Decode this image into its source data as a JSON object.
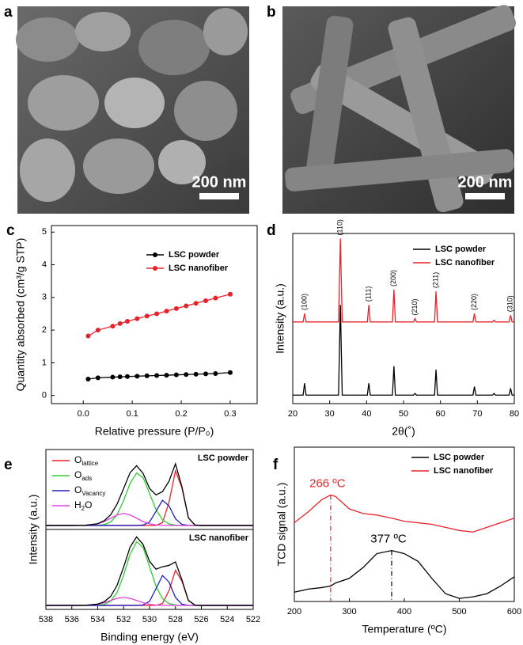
{
  "panels": [
    {
      "label": "a",
      "scale_bar": "200 nm"
    },
    {
      "label": "b",
      "scale_bar": "200 nm"
    }
  ],
  "chart_data": [
    {
      "label": "c",
      "type": "line",
      "x_label": "Relative pressure (P/P₀)",
      "y_label": "Quantity absorbed (cm³/g STP)",
      "x": [
        0.01,
        0.03,
        0.06,
        0.075,
        0.09,
        0.11,
        0.13,
        0.15,
        0.17,
        0.19,
        0.21,
        0.23,
        0.25,
        0.27,
        0.3
      ],
      "series": [
        {
          "name": "LSC powder",
          "color": "#000000",
          "values": [
            0.5,
            0.54,
            0.56,
            0.57,
            0.58,
            0.59,
            0.6,
            0.61,
            0.62,
            0.63,
            0.64,
            0.65,
            0.66,
            0.67,
            0.7
          ]
        },
        {
          "name": "LSC nanofiber",
          "color": "#e8222a",
          "values": [
            1.82,
            2.0,
            2.12,
            2.2,
            2.27,
            2.35,
            2.43,
            2.5,
            2.58,
            2.66,
            2.74,
            2.82,
            2.9,
            2.98,
            3.1
          ]
        }
      ],
      "xlim": [
        -0.065,
        0.355
      ],
      "ylim": [
        -0.25,
        5.2
      ],
      "xticks": [
        {
          "value": 0,
          "label": "0.0"
        },
        0.1,
        0.2,
        0.3
      ],
      "yticks": [
        0,
        1,
        2,
        3,
        4,
        5
      ],
      "markers": true,
      "legend": "upper right"
    },
    {
      "label": "d",
      "type": "line",
      "x_label": "2θ(˚)",
      "y_label": "Intensity (a.u.)",
      "x": [
        20,
        22.8,
        23.2,
        23.6,
        32.4,
        32.9,
        33.4,
        40.2,
        40.6,
        41.0,
        47.0,
        47.4,
        47.8,
        52.7,
        53.1,
        53.5,
        58.4,
        58.8,
        59.2,
        68.8,
        69.2,
        69.6,
        74.1,
        74.5,
        74.9,
        78.6,
        79.0,
        79.4,
        80
      ],
      "series": [
        {
          "name": "LSC powder",
          "color": "#000000",
          "values": [
            5,
            5,
            12,
            5,
            5,
            58,
            5,
            5,
            12,
            5,
            5,
            22,
            5,
            5,
            6,
            5,
            5,
            20,
            5,
            5,
            10,
            5,
            5,
            6,
            5,
            5,
            9,
            5,
            5
          ]
        },
        {
          "name": "LSC nanofiber",
          "color": "#e8222a",
          "values": [
            48,
            48,
            53,
            48,
            48,
            97,
            48,
            48,
            58,
            48,
            48,
            67,
            48,
            48,
            50,
            48,
            48,
            66,
            48,
            48,
            53,
            48,
            48,
            49,
            48,
            48,
            52,
            48,
            48
          ]
        }
      ],
      "xlim": [
        20,
        80
      ],
      "ylim": [
        0,
        100
      ],
      "xticks": [
        20,
        30,
        40,
        50,
        60,
        70,
        80
      ],
      "legend": "upper right",
      "peak_labels": [
        {
          "label": "(100)",
          "x": 23.2
        },
        {
          "label": "(110)",
          "x": 32.9
        },
        {
          "label": "(111)",
          "x": 40.6
        },
        {
          "label": "(200)",
          "x": 47.4
        },
        {
          "label": "(210)",
          "x": 53.1
        },
        {
          "label": "(211)",
          "x": 58.8
        },
        {
          "label": "(220)",
          "x": 69.2
        },
        {
          "label": "(310)",
          "x": 79.0
        }
      ]
    },
    {
      "label": "e",
      "type": "xps",
      "x_label": "Binding energy (eV)",
      "y_label": "Intensity (a.u.)",
      "x": [
        538,
        537,
        536,
        535,
        534,
        533.5,
        533,
        532.5,
        532,
        531.5,
        531,
        530.5,
        530,
        529.5,
        529,
        528.5,
        528,
        527.5,
        527,
        526.5,
        526,
        525,
        524,
        523,
        522
      ],
      "xlim": [
        538,
        522
      ],
      "xticks": [
        538,
        536,
        534,
        532,
        530,
        528,
        526,
        524,
        522
      ],
      "envelope_color": "#000000",
      "legend": "upper left",
      "series": [
        {
          "name": [
            "O",
            "lattice"
          ],
          "color": "#e8222a"
        },
        {
          "name": [
            "O",
            "ads"
          ],
          "color": "#33cc33"
        },
        {
          "name": [
            "O",
            "Vacancy"
          ],
          "color": "#1f1fbf"
        },
        {
          "name": [
            "H",
            "2",
            "O"
          ],
          "color": "#e040e0"
        }
      ],
      "subplots": [
        {
          "title": "LSC powder",
          "ylim": [
            0,
            100
          ],
          "envelope": [
            5,
            5,
            5,
            5.2,
            7.2,
            10.9,
            18.4,
            31.8,
            51.3,
            71.1,
            79.7,
            70.2,
            51.3,
            43.2,
            47.3,
            60.3,
            82.1,
            53.5,
            14.6,
            5.6,
            5,
            5,
            5,
            5,
            5
          ],
          "values": [
            [
              5,
              5,
              5,
              5,
              5,
              5,
              5,
              5,
              5,
              5,
              5,
              5,
              5,
              5.1,
              8.5,
              33.8,
              73.3,
              52.2,
              14.5,
              5.6,
              5,
              5,
              5,
              5,
              5
            ],
            [
              5,
              5,
              5,
              5,
              5.2,
              6.0,
              9.3,
              18.6,
              36.3,
              57.9,
              70.6,
              64.8,
              45.0,
              24.7,
              12.1,
              6.9,
              5.4,
              5,
              5,
              5,
              5,
              5,
              5,
              5,
              5
            ],
            [
              5,
              5,
              5,
              5,
              5,
              5,
              5,
              5,
              5,
              5,
              5,
              5.5,
              9.3,
              22.7,
              36.5,
              29.6,
              13.4,
              6.3,
              5.1,
              5,
              5,
              5,
              5,
              5,
              5
            ],
            [
              5,
              5,
              5,
              5.2,
              7.0,
              9.9,
              14.1,
              18.2,
              20,
              18.2,
              14.1,
              9.9,
              7.0,
              5.7,
              5.2,
              5,
              5,
              5,
              5,
              5,
              5,
              5,
              5,
              5,
              5
            ]
          ]
        },
        {
          "title": "LSC nanofiber",
          "ylim": [
            0,
            100
          ],
          "envelope": [
            5,
            5,
            5,
            5.1,
            6.6,
            9.5,
            16.3,
            30.3,
            52.9,
            77.9,
            90.6,
            81.3,
            60.1,
            50.3,
            53.4,
            55.0,
            59.4,
            36.9,
            11.2,
            5.4,
            5,
            5,
            5,
            5,
            5
          ],
          "values": [
            [
              5,
              5,
              5,
              5,
              5,
              5,
              5,
              5,
              5,
              5,
              5,
              5,
              5,
              5.1,
              7.3,
              23.5,
              48.9,
              35.3,
              11.1,
              5.4,
              5,
              5,
              5,
              5,
              5
            ],
            [
              5,
              5,
              5,
              5,
              5.2,
              6.2,
              10.3,
              21.5,
              42.9,
              69.1,
              84.5,
              77.5,
              53.6,
              28.8,
              13.6,
              7.3,
              5.4,
              5.1,
              5,
              5,
              5,
              5,
              5,
              5,
              5
            ],
            [
              5,
              5,
              5,
              5,
              5,
              5,
              5,
              5,
              5,
              5,
              5,
              5.6,
              10.1,
              26.0,
              42.4,
              34.2,
              15.0,
              6.5,
              5.1,
              5,
              5,
              5,
              5,
              5,
              5
            ],
            [
              5,
              5,
              5,
              5.1,
              6.4,
              8.3,
              11.1,
              13.8,
              15,
              13.8,
              11.1,
              8.3,
              6.4,
              5.4,
              5.1,
              5,
              5,
              5,
              5,
              5,
              5,
              5,
              5,
              5,
              5
            ]
          ]
        }
      ]
    },
    {
      "label": "f",
      "type": "line",
      "x_label": "Temperature (ºC)",
      "y_label": "TCD signal (a.u.)",
      "x": [
        200,
        225,
        250,
        266,
        275,
        300,
        325,
        350,
        377,
        400,
        425,
        450,
        475,
        500,
        525,
        550,
        575,
        600
      ],
      "series": [
        {
          "name": "LSC powder",
          "color": "#000000",
          "values": [
            6,
            8,
            9,
            10,
            12,
            15,
            22,
            31,
            33,
            31,
            26,
            15,
            5,
            2,
            3,
            5,
            10,
            16
          ]
        },
        {
          "name": "LSC nanofiber",
          "color": "#e8222a",
          "values": [
            51,
            58,
            66,
            69,
            68,
            60,
            57,
            56,
            54,
            52,
            51,
            50,
            48,
            46,
            45,
            48,
            51,
            54
          ]
        }
      ],
      "xlim": [
        200,
        600
      ],
      "ylim": [
        0,
        100
      ],
      "xticks": [
        200,
        300,
        400,
        500,
        600
      ],
      "legend": "upper right",
      "annotations": [
        {
          "text": "266 ºC",
          "x": 266,
          "series": 1,
          "color": "#e8222a"
        },
        {
          "text": "377 ºC",
          "x": 377,
          "series": 0,
          "color": "#000000"
        }
      ]
    }
  ]
}
